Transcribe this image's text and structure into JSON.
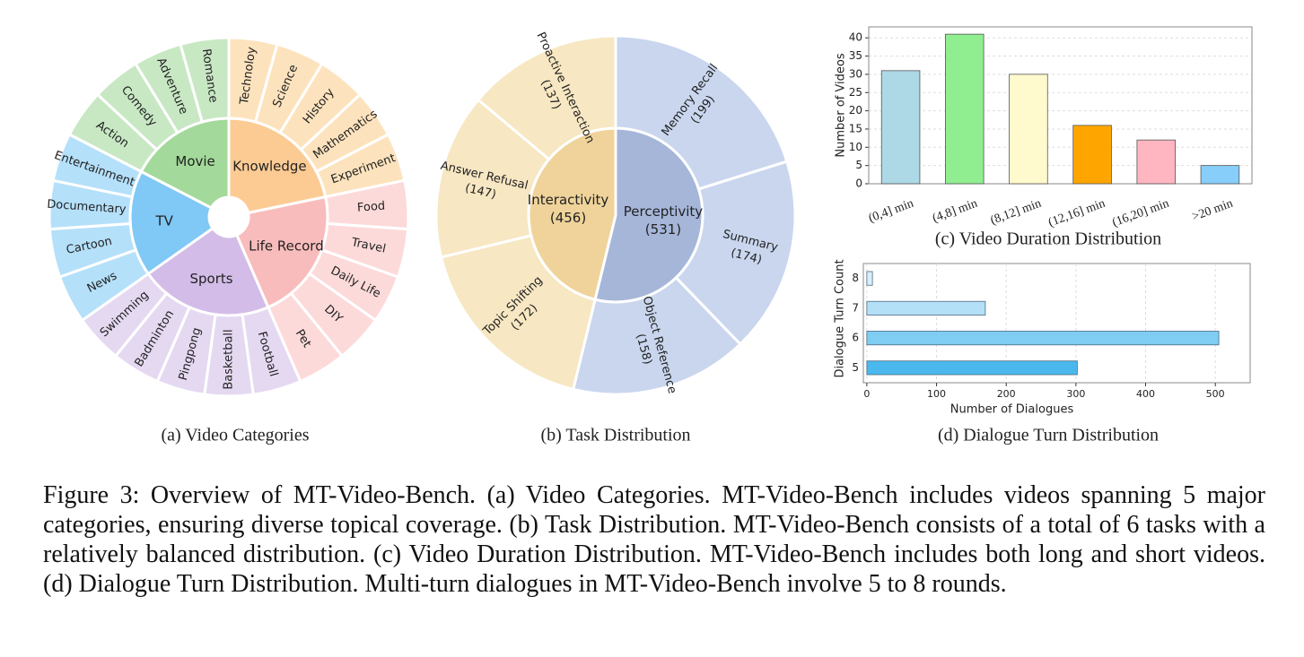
{
  "chart_data": [
    {
      "type": "sunburst",
      "title": "(a) Video Categories",
      "categories": [
        "Knowledge",
        "Life Record",
        "Sports",
        "TV",
        "Movie"
      ],
      "colors": [
        "#fccb94",
        "#f9bcbc",
        "#d3bde8",
        "#80c8f5",
        "#a3d99a"
      ],
      "children": [
        {
          "categories": [
            "Technoloy",
            "Science",
            "History",
            "Mathematics",
            "Experiment"
          ],
          "color": "#fde3bd"
        },
        {
          "categories": [
            "Food",
            "Travel",
            "Daily Life",
            "DIY",
            "Pet"
          ],
          "color": "#fddada"
        },
        {
          "categories": [
            "Football",
            "Basketball",
            "Pingpong",
            "Badminton",
            "Swimming"
          ],
          "color": "#e5d9f2"
        },
        {
          "categories": [
            "News",
            "Cartoon",
            "Documentary",
            "Entertainment"
          ],
          "color": "#b5e0fa"
        },
        {
          "categories": [
            "Action",
            "Comedy",
            "Adventure",
            "Romance"
          ],
          "color": "#c8e8c4"
        }
      ]
    },
    {
      "type": "sunburst",
      "title": "(b) Task Distribution",
      "categories": [
        "Perceptivity",
        "Interactivity"
      ],
      "values": [
        531,
        456
      ],
      "value_labels": [
        "(531)",
        "(456)"
      ],
      "colors": [
        "#a6b6d9",
        "#efd39a"
      ],
      "children": [
        {
          "categories": [
            "Memory Recall",
            "Summary",
            "Object Reference"
          ],
          "values": [
            199,
            174,
            158
          ],
          "value_labels": [
            "(199)",
            "(174)",
            "(158)"
          ],
          "color": "#c9d6ee"
        },
        {
          "categories": [
            "Topic Shifting",
            "Answer Refusal",
            "Proactive Interaction"
          ],
          "values": [
            172,
            147,
            137
          ],
          "value_labels": [
            "(172)",
            "(147)",
            "(137)"
          ],
          "color": "#f7e7c2"
        }
      ]
    },
    {
      "type": "bar",
      "title": "(c) Video Duration Distribution",
      "ylabel": "Number of Videos",
      "categories": [
        "(0,4] min",
        "(4,8] min",
        "(8,12] min",
        "(12,16] min",
        "(16,20] min",
        ">20 min"
      ],
      "values": [
        31,
        41,
        30,
        16,
        12,
        5
      ],
      "colors": [
        "#add8e6",
        "#90ee90",
        "#fffacd",
        "#ffa500",
        "#ffb6c1",
        "#87cefa"
      ],
      "ylim": [
        0,
        43
      ],
      "yticks": [
        0,
        5,
        10,
        15,
        20,
        25,
        30,
        35,
        40
      ],
      "grid": true
    },
    {
      "type": "barh",
      "title": "(d) Dialogue Turn Distribution",
      "xlabel": "Number of Dialogues",
      "ylabel": "Dialogue Turn Count",
      "categories": [
        "5",
        "6",
        "7",
        "8"
      ],
      "values": [
        302,
        505,
        170,
        8
      ],
      "colors": [
        "#4ab8ed",
        "#7fcdf2",
        "#b3e0f7",
        "#dbeefa"
      ],
      "xlim": [
        -5,
        550
      ],
      "xticks": [
        0,
        100,
        200,
        300,
        400,
        500
      ],
      "grid": true
    }
  ],
  "caption": "Figure 3: Overview of MT-Video-Bench. (a) Video Categories. MT-Video-Bench includes videos spanning 5 major categories, ensuring diverse topical coverage. (b) Task Distribution. MT-Video-Bench consists of a total of 6 tasks with a relatively balanced distribution. (c) Video Duration Distribution. MT-Video-Bench includes both long and short videos. (d) Dialogue Turn Distribution. Multi-turn dialogues in MT-Video-Bench involve 5 to 8 rounds."
}
